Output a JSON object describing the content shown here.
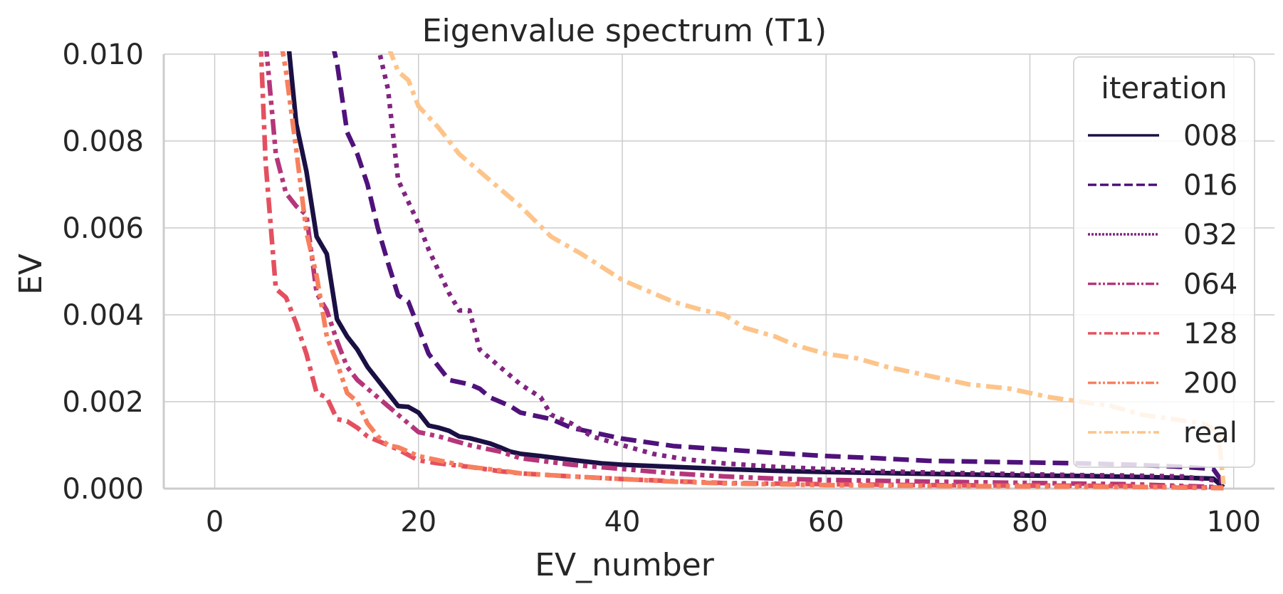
{
  "chart_data": {
    "type": "line",
    "title": "Eigenvalue spectrum (T1)",
    "xlabel": "EV_number",
    "ylabel": "EV",
    "xlim": [
      -5,
      104
    ],
    "ylim": [
      0,
      0.01
    ],
    "x_ticks": [
      0,
      20,
      40,
      60,
      80,
      100
    ],
    "y_ticks": [
      0.0,
      0.002,
      0.004,
      0.006,
      0.008,
      0.01
    ],
    "x_tick_labels": [
      "0",
      "20",
      "40",
      "60",
      "80",
      "100"
    ],
    "y_tick_labels": [
      "0.000",
      "0.002",
      "0.004",
      "0.006",
      "0.008",
      "0.010"
    ],
    "grid": true,
    "legend": {
      "title": "iteration",
      "placement": "right"
    },
    "series": [
      {
        "name": "008",
        "color": "#1b1044",
        "dash": "solid",
        "points": [
          [
            6,
            0.0118
          ],
          [
            7,
            0.0108
          ],
          [
            8,
            0.0084
          ],
          [
            9,
            0.0073
          ],
          [
            10,
            0.0058
          ],
          [
            11,
            0.0054
          ],
          [
            12,
            0.0039
          ],
          [
            13,
            0.0035
          ],
          [
            14,
            0.0032
          ],
          [
            15,
            0.0028
          ],
          [
            16,
            0.0025
          ],
          [
            17,
            0.0022
          ],
          [
            18,
            0.0019
          ],
          [
            19,
            0.00188
          ],
          [
            20,
            0.00175
          ],
          [
            21,
            0.00145
          ],
          [
            22,
            0.0014
          ],
          [
            23,
            0.00133
          ],
          [
            24,
            0.0012
          ],
          [
            25,
            0.00116
          ],
          [
            26,
            0.0011
          ],
          [
            27,
            0.00104
          ],
          [
            28,
            0.00095
          ],
          [
            29,
            0.00085
          ],
          [
            30,
            0.0008
          ],
          [
            32,
            0.00075
          ],
          [
            35,
            0.00066
          ],
          [
            38,
            0.00058
          ],
          [
            40,
            0.00055
          ],
          [
            45,
            0.0005
          ],
          [
            50,
            0.00045
          ],
          [
            55,
            0.00041
          ],
          [
            60,
            0.00038
          ],
          [
            65,
            0.00036
          ],
          [
            70,
            0.00034
          ],
          [
            75,
            0.00032
          ],
          [
            80,
            0.0003
          ],
          [
            85,
            0.00029
          ],
          [
            90,
            0.00027
          ],
          [
            95,
            0.00025
          ],
          [
            98,
            0.00023
          ],
          [
            99,
            3e-05
          ]
        ]
      },
      {
        "name": "016",
        "color": "#4f127b",
        "dash": "dashed",
        "points": [
          [
            10,
            0.0118
          ],
          [
            11,
            0.0108
          ],
          [
            12,
            0.0098
          ],
          [
            13,
            0.0082
          ],
          [
            14,
            0.0077
          ],
          [
            15,
            0.007
          ],
          [
            16,
            0.006
          ],
          [
            17,
            0.0052
          ],
          [
            18,
            0.00445
          ],
          [
            19,
            0.0043
          ],
          [
            20,
            0.0037
          ],
          [
            21,
            0.0031
          ],
          [
            22,
            0.0028
          ],
          [
            23,
            0.0025
          ],
          [
            25,
            0.0024
          ],
          [
            26,
            0.0023
          ],
          [
            27,
            0.0021
          ],
          [
            29,
            0.0019
          ],
          [
            30,
            0.00175
          ],
          [
            33,
            0.0016
          ],
          [
            35,
            0.0014
          ],
          [
            38,
            0.00125
          ],
          [
            40,
            0.00115
          ],
          [
            45,
            0.00098
          ],
          [
            50,
            0.0009
          ],
          [
            55,
            0.00082
          ],
          [
            60,
            0.00075
          ],
          [
            65,
            0.0007
          ],
          [
            70,
            0.00064
          ],
          [
            75,
            0.00062
          ],
          [
            80,
            0.0006
          ],
          [
            85,
            0.00058
          ],
          [
            90,
            0.00055
          ],
          [
            95,
            0.0005
          ],
          [
            98,
            0.00045
          ],
          [
            99,
            0.00012
          ]
        ]
      },
      {
        "name": "032",
        "color": "#812581",
        "dash": "dotted",
        "points": [
          [
            16,
            0.0102
          ],
          [
            17,
            0.0092
          ],
          [
            18,
            0.0071
          ],
          [
            19,
            0.0066
          ],
          [
            20,
            0.0061
          ],
          [
            21,
            0.0055
          ],
          [
            22,
            0.005
          ],
          [
            23,
            0.0045
          ],
          [
            24,
            0.0041
          ],
          [
            25,
            0.0041
          ],
          [
            26,
            0.0032
          ],
          [
            28,
            0.0028
          ],
          [
            30,
            0.0024
          ],
          [
            32,
            0.0021
          ],
          [
            33,
            0.0017
          ],
          [
            35,
            0.0015
          ],
          [
            37,
            0.0012
          ],
          [
            40,
            0.001
          ],
          [
            43,
            0.0008
          ],
          [
            46,
            0.00068
          ],
          [
            50,
            0.00058
          ],
          [
            55,
            0.0005
          ],
          [
            60,
            0.00045
          ],
          [
            65,
            0.0004
          ],
          [
            70,
            0.00037
          ],
          [
            75,
            0.00035
          ],
          [
            80,
            0.00033
          ],
          [
            85,
            0.00031
          ],
          [
            90,
            0.0003
          ],
          [
            95,
            0.00028
          ],
          [
            99,
            0.00016
          ]
        ]
      },
      {
        "name": "064",
        "color": "#b5367a",
        "dash": "dashdotdot",
        "points": [
          [
            5,
            0.0103
          ],
          [
            6,
            0.0077
          ],
          [
            7,
            0.0068
          ],
          [
            8,
            0.0065
          ],
          [
            9,
            0.0063
          ],
          [
            10,
            0.0045
          ],
          [
            11,
            0.0041
          ],
          [
            12,
            0.0034
          ],
          [
            13,
            0.0028
          ],
          [
            14,
            0.0025
          ],
          [
            15,
            0.0023
          ],
          [
            16,
            0.0021
          ],
          [
            17,
            0.0019
          ],
          [
            18,
            0.0017
          ],
          [
            19,
            0.0015
          ],
          [
            20,
            0.0013
          ],
          [
            22,
            0.0012
          ],
          [
            25,
            0.001
          ],
          [
            28,
            0.00085
          ],
          [
            30,
            0.0007
          ],
          [
            35,
            0.00055
          ],
          [
            40,
            0.00045
          ],
          [
            45,
            0.00035
          ],
          [
            50,
            0.00028
          ],
          [
            55,
            0.00023
          ],
          [
            60,
            0.0002
          ],
          [
            70,
            0.00016
          ],
          [
            80,
            0.00013
          ],
          [
            90,
            0.0001
          ],
          [
            99,
            3e-05
          ]
        ]
      },
      {
        "name": "128",
        "color": "#e4505f",
        "dash": "dashdot",
        "points": [
          [
            4.5,
            0.0103
          ],
          [
            5,
            0.0075
          ],
          [
            6,
            0.0046
          ],
          [
            7,
            0.0044
          ],
          [
            8,
            0.0038
          ],
          [
            9,
            0.0031
          ],
          [
            10,
            0.0022
          ],
          [
            11,
            0.0021
          ],
          [
            12,
            0.0016
          ],
          [
            13,
            0.00155
          ],
          [
            14,
            0.0014
          ],
          [
            15,
            0.0012
          ],
          [
            16,
            0.0011
          ],
          [
            18,
            0.0009
          ],
          [
            20,
            0.00065
          ],
          [
            22,
            0.00058
          ],
          [
            25,
            0.0005
          ],
          [
            28,
            0.0004
          ],
          [
            30,
            0.00035
          ],
          [
            35,
            0.00028
          ],
          [
            40,
            0.00022
          ],
          [
            45,
            0.00017
          ],
          [
            50,
            0.00013
          ],
          [
            60,
            0.0001
          ],
          [
            70,
            8e-05
          ],
          [
            80,
            7e-05
          ],
          [
            90,
            6e-05
          ],
          [
            99,
            2e-05
          ]
        ]
      },
      {
        "name": "200",
        "color": "#f7805e",
        "dash": "dashdotdot",
        "points": [
          [
            6.5,
            0.0103
          ],
          [
            7,
            0.0096
          ],
          [
            8,
            0.0078
          ],
          [
            9,
            0.0059
          ],
          [
            10,
            0.0049
          ],
          [
            11,
            0.0035
          ],
          [
            12,
            0.0029
          ],
          [
            13,
            0.0022
          ],
          [
            14,
            0.002
          ],
          [
            15,
            0.0015
          ],
          [
            16,
            0.0012
          ],
          [
            17,
            0.001
          ],
          [
            18,
            0.00095
          ],
          [
            19,
            0.00085
          ],
          [
            20,
            0.00075
          ],
          [
            22,
            0.00065
          ],
          [
            25,
            0.0005
          ],
          [
            28,
            0.00042
          ],
          [
            30,
            0.00035
          ],
          [
            35,
            0.00028
          ],
          [
            40,
            0.00022
          ],
          [
            45,
            0.00016
          ],
          [
            50,
            0.00012
          ],
          [
            60,
            8e-05
          ],
          [
            70,
            6e-05
          ],
          [
            80,
            5e-05
          ],
          [
            90,
            4e-05
          ],
          [
            99,
            1e-05
          ]
        ]
      },
      {
        "name": "real",
        "color": "#fdc48a",
        "dash": "dashdot",
        "points": [
          [
            17,
            0.0102
          ],
          [
            18,
            0.0096
          ],
          [
            19,
            0.0094
          ],
          [
            20,
            0.0088
          ],
          [
            22,
            0.0083
          ],
          [
            24,
            0.0077
          ],
          [
            26,
            0.0073
          ],
          [
            28,
            0.0069
          ],
          [
            30,
            0.0065
          ],
          [
            33,
            0.0058
          ],
          [
            36,
            0.0054
          ],
          [
            38,
            0.0051
          ],
          [
            40,
            0.0048
          ],
          [
            43,
            0.0045
          ],
          [
            45,
            0.0043
          ],
          [
            48,
            0.0041
          ],
          [
            50,
            0.004
          ],
          [
            52,
            0.0037
          ],
          [
            55,
            0.0035
          ],
          [
            57,
            0.0033
          ],
          [
            60,
            0.0031
          ],
          [
            63,
            0.003
          ],
          [
            66,
            0.0028
          ],
          [
            70,
            0.0026
          ],
          [
            74,
            0.0024
          ],
          [
            78,
            0.0023
          ],
          [
            82,
            0.0021
          ],
          [
            85,
            0.002
          ],
          [
            88,
            0.0019
          ],
          [
            91,
            0.0017
          ],
          [
            94,
            0.0016
          ],
          [
            97,
            0.0015
          ],
          [
            98.5,
            0.0013
          ],
          [
            99,
            0.0001
          ]
        ]
      }
    ]
  }
}
